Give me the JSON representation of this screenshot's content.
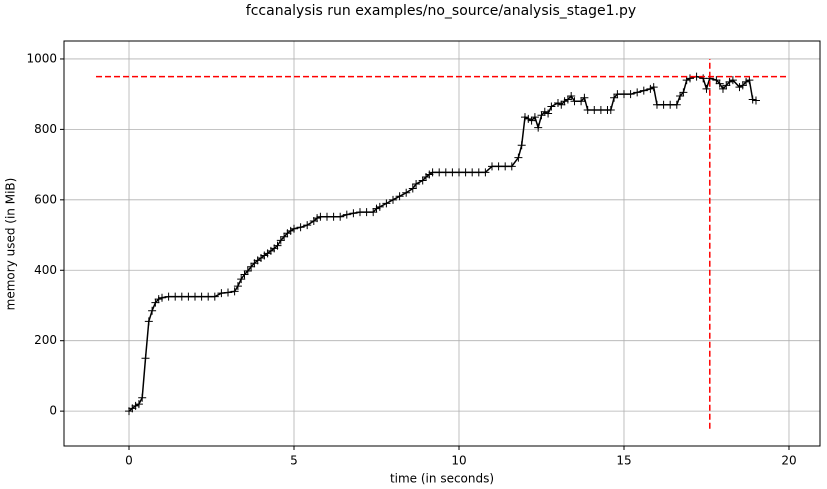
{
  "chart_data": {
    "type": "line",
    "title": "fccanalysis run examples/no_source/analysis_stage1.py",
    "x_label": "time (in seconds)",
    "y_label": "memory used (in MiB)",
    "xlim": [
      -1.97,
      20.94
    ],
    "ylim": [
      -99,
      1051
    ],
    "xticks": [
      0,
      5,
      10,
      15,
      20
    ],
    "yticks": [
      0,
      200,
      400,
      600,
      800,
      1000
    ],
    "grid": true,
    "marker": "+",
    "series": [
      {
        "color": "#000000",
        "x": [
          0,
          0.1,
          0.2,
          0.3,
          0.4,
          0.5,
          0.6,
          0.7,
          0.8,
          0.9,
          1.0,
          1.2,
          1.4,
          1.6,
          1.8,
          2.0,
          2.2,
          2.4,
          2.6,
          2.8,
          3.0,
          3.2,
          3.3,
          3.4,
          3.5,
          3.6,
          3.7,
          3.8,
          3.9,
          4.0,
          4.1,
          4.2,
          4.3,
          4.4,
          4.5,
          4.6,
          4.7,
          4.8,
          4.9,
          5.0,
          5.2,
          5.4,
          5.6,
          5.7,
          5.8,
          6.0,
          6.2,
          6.4,
          6.6,
          6.8,
          7.0,
          7.2,
          7.4,
          7.5,
          7.6,
          7.8,
          8.0,
          8.2,
          8.4,
          8.6,
          8.7,
          8.9,
          9.0,
          9.1,
          9.2,
          9.4,
          9.6,
          9.8,
          10.0,
          10.2,
          10.4,
          10.6,
          10.8,
          11.0,
          11.2,
          11.4,
          11.6,
          11.8,
          11.9,
          12.0,
          12.1,
          12.2,
          12.3,
          12.4,
          12.5,
          12.6,
          12.7,
          12.8,
          13.0,
          13.1,
          13.2,
          13.3,
          13.4,
          13.5,
          13.7,
          13.8,
          13.9,
          14.1,
          14.3,
          14.5,
          14.6,
          14.7,
          14.8,
          15.0,
          15.2,
          15.4,
          15.6,
          15.8,
          15.9,
          16.0,
          16.2,
          16.4,
          16.6,
          16.7,
          16.8,
          16.9,
          17.0,
          17.2,
          17.4,
          17.5,
          17.6,
          17.8,
          17.9,
          18.0,
          18.1,
          18.2,
          18.3,
          18.5,
          18.6,
          18.7,
          18.8,
          18.9,
          19.0
        ],
        "values": [
          0,
          8,
          15,
          20,
          38,
          150,
          255,
          285,
          308,
          318,
          322,
          325,
          325,
          325,
          325,
          325,
          325,
          325,
          325,
          335,
          337,
          340,
          355,
          375,
          388,
          398,
          410,
          420,
          428,
          435,
          442,
          448,
          455,
          462,
          470,
          485,
          495,
          505,
          512,
          518,
          522,
          528,
          540,
          548,
          552,
          552,
          552,
          552,
          558,
          562,
          565,
          565,
          565,
          575,
          580,
          590,
          600,
          610,
          620,
          632,
          645,
          655,
          665,
          672,
          678,
          678,
          678,
          678,
          678,
          678,
          678,
          678,
          678,
          695,
          695,
          695,
          695,
          720,
          755,
          835,
          830,
          825,
          835,
          805,
          840,
          850,
          845,
          865,
          875,
          870,
          880,
          885,
          895,
          880,
          880,
          890,
          855,
          855,
          855,
          855,
          855,
          890,
          900,
          900,
          900,
          905,
          910,
          915,
          920,
          870,
          870,
          870,
          870,
          895,
          905,
          940,
          945,
          950,
          945,
          915,
          945,
          940,
          930,
          915,
          925,
          935,
          940,
          920,
          925,
          935,
          940,
          885,
          882
        ]
      }
    ],
    "hline": {
      "y": 950,
      "xmin": -1,
      "xmax": 20,
      "color": "#ff0000"
    },
    "vline": {
      "x": 17.6,
      "ymin": -50,
      "ymax": 1000,
      "color": "#ff0000"
    }
  }
}
